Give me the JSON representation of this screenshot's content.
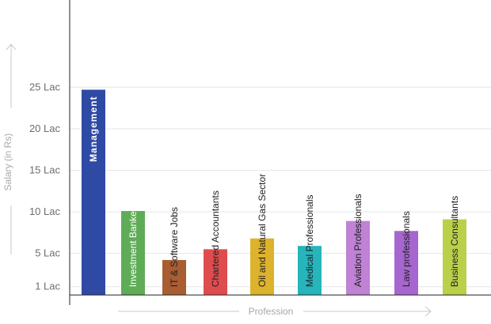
{
  "chart_data": {
    "type": "bar",
    "title": "",
    "xlabel": "Profession",
    "ylabel": "Salary (in Rs)",
    "categories": [
      "Management",
      "Investment Bankers",
      "IT & Software Jobs",
      "Chartered Accountants",
      "Oil and Natural Gas Sector",
      "Medical Professionals",
      "Aviation Professionals",
      "Law professionals",
      "Business Consultants"
    ],
    "values": [
      24.7,
      10.1,
      4.2,
      5.5,
      6.8,
      5.9,
      8.9,
      7.7,
      9.1
    ],
    "colors": [
      "#2f4aa5",
      "#5fac57",
      "#a95d33",
      "#df4c4e",
      "#ddb22c",
      "#25b5bb",
      "#bf82d4",
      "#a766cf",
      "#bbd04a"
    ],
    "label_colors": [
      "#ffffff",
      "#ffffff",
      "#222222",
      "#222222",
      "#222222",
      "#222222",
      "#222222",
      "#222222",
      "#222222"
    ],
    "label_bold": [
      true,
      false,
      false,
      false,
      false,
      false,
      false,
      false,
      false
    ],
    "yticks": [
      {
        "value": 1,
        "label": "1 Lac"
      },
      {
        "value": 5,
        "label": "5 Lac"
      },
      {
        "value": 10,
        "label": "10 Lac"
      },
      {
        "value": 15,
        "label": "15 Lac"
      },
      {
        "value": 20,
        "label": "20 Lac"
      },
      {
        "value": 25,
        "label": "25 Lac"
      }
    ],
    "ylim": [
      -3.5,
      35.5
    ],
    "grid": true,
    "axis_color": "#222222",
    "grid_color": "#e6e6e6",
    "legend": "none"
  }
}
